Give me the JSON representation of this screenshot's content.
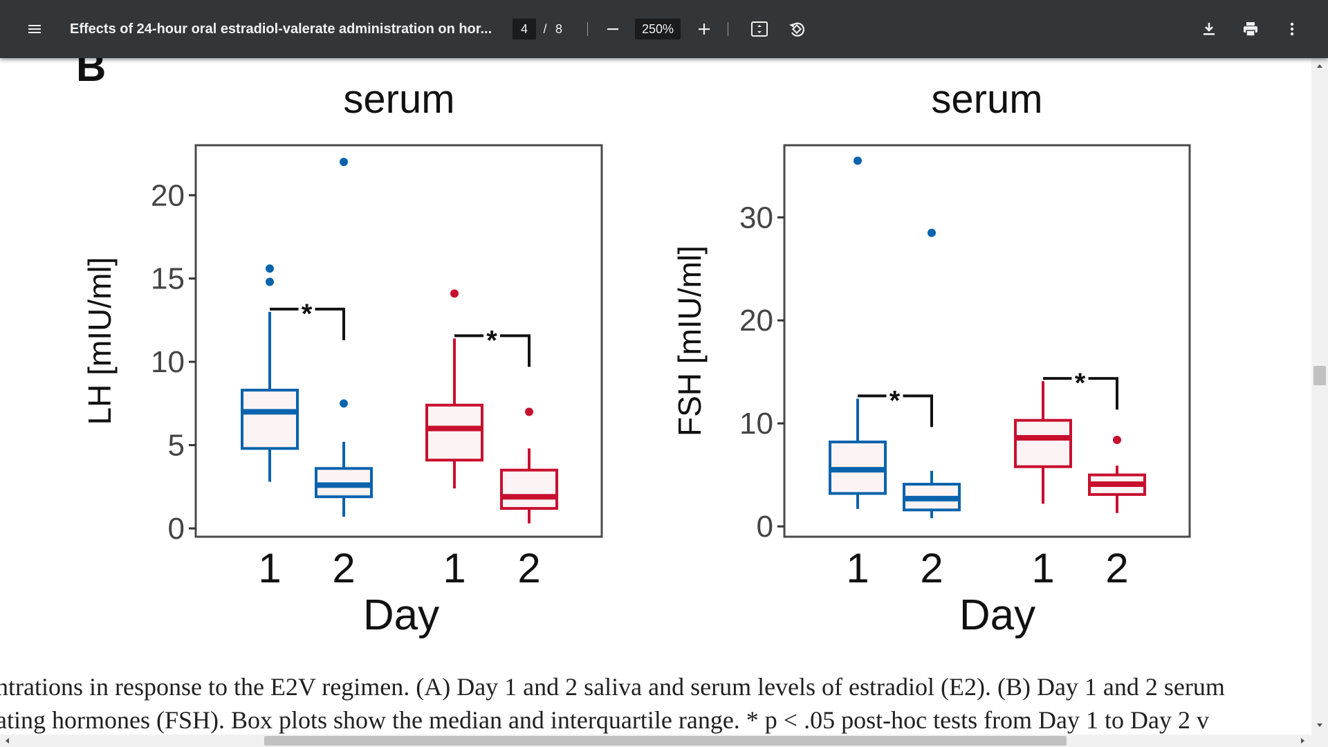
{
  "toolbar": {
    "title": "Effects of 24-hour oral estradiol-valerate administration on hor...",
    "page_current": "4",
    "page_separator": "/",
    "page_total": "8",
    "zoom": "250%",
    "icons": [
      "menu-icon",
      "minus-icon",
      "plus-icon",
      "fit-page-icon",
      "rotate-icon",
      "download-icon",
      "print-icon",
      "more-vert-icon"
    ]
  },
  "figure": {
    "panel_label": "B",
    "box_colors": {
      "blue": "#0a63ad",
      "red": "#c8102e",
      "fill": "#fbf3f4"
    }
  },
  "chart_data": [
    {
      "type": "box",
      "title": "serum",
      "xlabel": "Day",
      "ylabel": "LH [mIU/ml]",
      "ylim": [
        -0.5,
        23
      ],
      "yticks": [
        0,
        5,
        10,
        15,
        20
      ],
      "categories": [
        "1",
        "2",
        "1",
        "2"
      ],
      "series": [
        {
          "color": "blue",
          "boxes": [
            {
              "day": "1",
              "whisker_low": 2.8,
              "q1": 4.8,
              "median": 7.0,
              "q3": 8.3,
              "whisker_high": 13.0,
              "outliers": [
                14.8,
                15.6
              ]
            },
            {
              "day": "2",
              "whisker_low": 0.7,
              "q1": 1.9,
              "median": 2.6,
              "q3": 3.6,
              "whisker_high": 5.2,
              "outliers": [
                7.5,
                22.0
              ]
            }
          ]
        },
        {
          "color": "red",
          "boxes": [
            {
              "day": "1",
              "whisker_low": 2.4,
              "q1": 4.1,
              "median": 6.0,
              "q3": 7.4,
              "whisker_high": 11.4,
              "outliers": [
                14.1
              ]
            },
            {
              "day": "2",
              "whisker_low": 0.3,
              "q1": 1.2,
              "median": 1.9,
              "q3": 3.5,
              "whisker_high": 4.8,
              "outliers": [
                7.0
              ]
            }
          ]
        }
      ],
      "annotations": [
        "*",
        "*"
      ]
    },
    {
      "type": "box",
      "title": "serum",
      "xlabel": "Day",
      "ylabel": "FSH [mIU/ml]",
      "ylim": [
        -1,
        37
      ],
      "yticks": [
        0,
        10,
        20,
        30
      ],
      "categories": [
        "1",
        "2",
        "1",
        "2"
      ],
      "series": [
        {
          "color": "blue",
          "boxes": [
            {
              "day": "1",
              "whisker_low": 1.7,
              "q1": 3.2,
              "median": 5.5,
              "q3": 8.2,
              "whisker_high": 12.4,
              "outliers": [
                35.5
              ]
            },
            {
              "day": "2",
              "whisker_low": 0.8,
              "q1": 1.6,
              "median": 2.7,
              "q3": 4.1,
              "whisker_high": 5.4,
              "outliers": [
                28.5
              ]
            }
          ]
        },
        {
          "color": "red",
          "boxes": [
            {
              "day": "1",
              "whisker_low": 2.2,
              "q1": 5.8,
              "median": 8.6,
              "q3": 10.3,
              "whisker_high": 14.1,
              "outliers": []
            },
            {
              "day": "2",
              "whisker_low": 1.3,
              "q1": 3.1,
              "median": 4.1,
              "q3": 5.0,
              "whisker_high": 5.9,
              "outliers": [
                8.4
              ]
            }
          ]
        }
      ],
      "annotations": [
        "*",
        "*"
      ]
    }
  ],
  "caption": {
    "line1": "ntrations in response to the E2V regimen. (A) Day 1 and 2 saliva and serum levels of estradiol (E2). (B) Day 1 and 2 serum",
    "line2": "ating hormones (FSH). Box plots show the median and interquartile range. * p < .05 post-hoc tests from Day 1 to Day 2 v"
  }
}
